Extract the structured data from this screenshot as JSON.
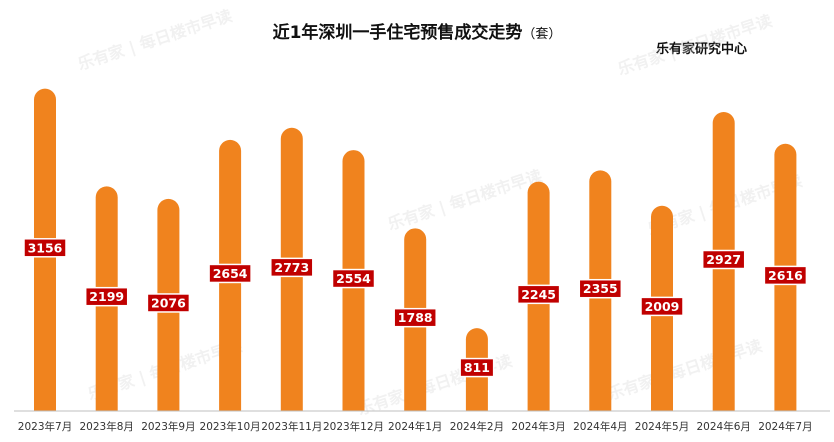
{
  "title": "近1年深圳一手住宅预售成交走势",
  "unit": "（套）",
  "source": "乐有家研究中心",
  "watermark": "乐有家 | 每日楼市早读",
  "colors": {
    "bar": "#f0831e",
    "label_bg": "#c00000",
    "label_text": "#ffffff",
    "axis": "#bfbfbf"
  },
  "chart_data": {
    "type": "bar",
    "title": "近1年深圳一手住宅预售成交走势（套）",
    "categories": [
      "2023年7月",
      "2023年8月",
      "2023年9月",
      "2023年10月",
      "2023年11月",
      "2023年12月",
      "2024年1月",
      "2024年2月",
      "2024年3月",
      "2024年4月",
      "2024年5月",
      "2024年6月",
      "2024年7月"
    ],
    "values": [
      3156,
      2199,
      2076,
      2654,
      2773,
      2554,
      1788,
      811,
      2245,
      2355,
      2009,
      2927,
      2616
    ],
    "ylim": [
      0,
      3250
    ],
    "grid": false,
    "legend": "none",
    "data_labels": true
  }
}
